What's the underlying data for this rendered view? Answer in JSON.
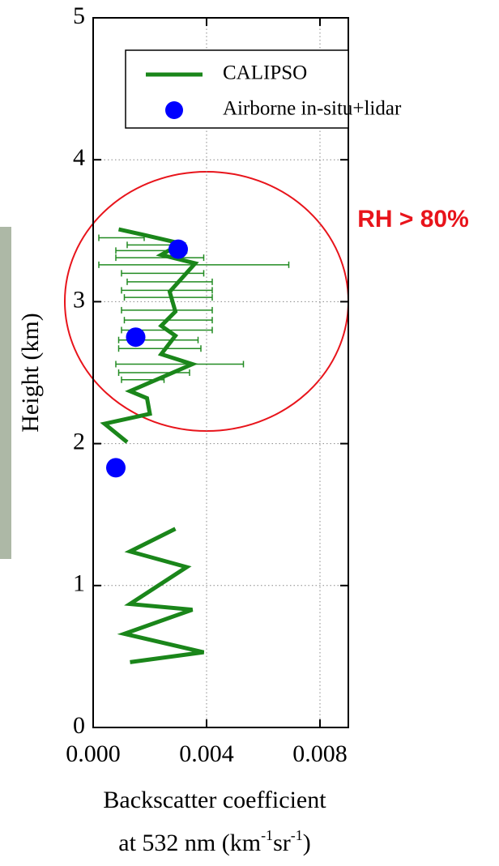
{
  "chart_data": {
    "type": "line",
    "xlabel": {
      "line1": "Backscatter coefficient",
      "line2": [
        "at 532 nm  (km",
        "-1",
        "sr",
        "-1",
        ")"
      ]
    },
    "ylabel": "Height (km)",
    "annotation": "RH > 80%",
    "xlim": [
      0,
      0.009
    ],
    "ylim": [
      0,
      5
    ],
    "xticks": [
      {
        "value": 0,
        "label": "0.000"
      },
      {
        "value": 0.004,
        "label": "0.004"
      },
      {
        "value": 0.008,
        "label": "0.008"
      }
    ],
    "yticks": [
      0,
      1,
      2,
      3,
      4,
      5
    ],
    "grid": true,
    "legend": "upper right",
    "series": [
      {
        "name": "CALIPSO",
        "color": "#1a861a",
        "kind": "line",
        "x": [
          0.0013,
          0.0039,
          0.0011,
          0.0035,
          0.0013,
          0.0033,
          0.0013,
          0.0029,
          null,
          0.0012,
          0.0004,
          0.002,
          0.0019,
          0.0013,
          0.0035,
          0.0024,
          0.0029,
          0.0024,
          0.0029,
          0.0027,
          0.0036,
          0.0024,
          0.0031,
          0.0018,
          0.0009
        ],
        "y": [
          0.46,
          0.53,
          0.66,
          0.83,
          0.87,
          1.13,
          1.24,
          1.4,
          null,
          2.01,
          2.14,
          2.21,
          2.32,
          2.37,
          2.56,
          2.63,
          2.76,
          2.83,
          2.93,
          3.07,
          3.27,
          3.33,
          3.41,
          3.47,
          3.51
        ]
      },
      {
        "name": "Airborne in-situ+lidar",
        "color": "#0000ff",
        "kind": "scatter",
        "x": [
          0.003,
          0.0015,
          0.0008
        ],
        "y": [
          3.37,
          2.75,
          1.83
        ]
      }
    ],
    "error_bars": {
      "color": "#228b22",
      "y": [
        3.45,
        3.4,
        3.36,
        3.31,
        3.26,
        3.2,
        3.14,
        3.08,
        3.03,
        2.94,
        2.87,
        2.8,
        2.73,
        2.67,
        2.56,
        2.5,
        2.45
      ],
      "xmin": [
        0.0002,
        0.0012,
        0.0008,
        0.0008,
        0.0002,
        0.001,
        0.0012,
        0.001,
        0.0011,
        0.001,
        0.0011,
        0.001,
        0.0009,
        0.0009,
        0.0008,
        0.0009,
        0.001
      ],
      "xmax": [
        0.0018,
        0.0032,
        0.0033,
        0.0039,
        0.0069,
        0.0039,
        0.0042,
        0.0042,
        0.0042,
        0.0042,
        0.0042,
        0.0042,
        0.0037,
        0.0038,
        0.0053,
        0.0034,
        0.0025
      ]
    }
  }
}
